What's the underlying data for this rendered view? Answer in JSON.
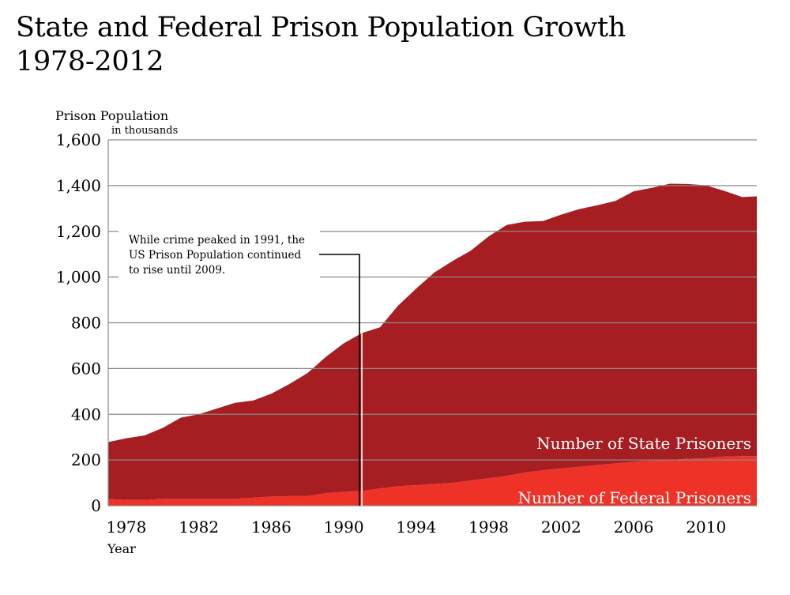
{
  "chart_data": {
    "type": "area",
    "stacked": true,
    "title_lines": [
      "State and Federal Prison Population Growth",
      "1978-2012"
    ],
    "ylabel": "Prison Population",
    "ylabel_sub": "in thousands",
    "xlabel": "Year",
    "ylim": [
      0,
      1600
    ],
    "xlim": [
      1977,
      2012.8
    ],
    "y_ticks": [
      "0",
      "200",
      "400",
      "600",
      "800",
      "1,000",
      "1,200",
      "1,400",
      "1,600"
    ],
    "x_ticks": [
      "1978",
      "1982",
      "1986",
      "1990",
      "1994",
      "1998",
      "2002",
      "2006",
      "2010"
    ],
    "grid": true,
    "x": [
      1977,
      1978,
      1979,
      1980,
      1981,
      1982,
      1983,
      1984,
      1985,
      1986,
      1987,
      1988,
      1989,
      1990,
      1991,
      1992,
      1993,
      1994,
      1995,
      1996,
      1997,
      1998,
      1999,
      2000,
      2001,
      2002,
      2003,
      2004,
      2005,
      2006,
      2007,
      2008,
      2009,
      2010,
      2011,
      2012,
      2012.8
    ],
    "series": [
      {
        "name": "Number of Federal Prisoners",
        "color": "#ef3227",
        "values": [
          30,
          25,
          25,
          30,
          30,
          30,
          30,
          30,
          35,
          40,
          42,
          42,
          55,
          60,
          65,
          75,
          85,
          90,
          95,
          100,
          110,
          120,
          130,
          145,
          155,
          163,
          170,
          178,
          185,
          192,
          197,
          200,
          205,
          208,
          215,
          217,
          217
        ]
      },
      {
        "name": "Number of State Prisoners",
        "color": "#a71e22",
        "values": [
          248,
          270,
          282,
          310,
          355,
          370,
          395,
          420,
          425,
          450,
          490,
          538,
          595,
          650,
          690,
          705,
          790,
          860,
          925,
          970,
          1005,
          1058,
          1098,
          1097,
          1090,
          1110,
          1127,
          1136,
          1148,
          1183,
          1193,
          1208,
          1202,
          1193,
          1162,
          1133,
          1136
        ]
      }
    ],
    "annotation": {
      "lines": [
        "While crime peaked in 1991, the",
        "US Prison Population continued",
        "to rise until 2009."
      ],
      "marker_year": 1991
    }
  }
}
